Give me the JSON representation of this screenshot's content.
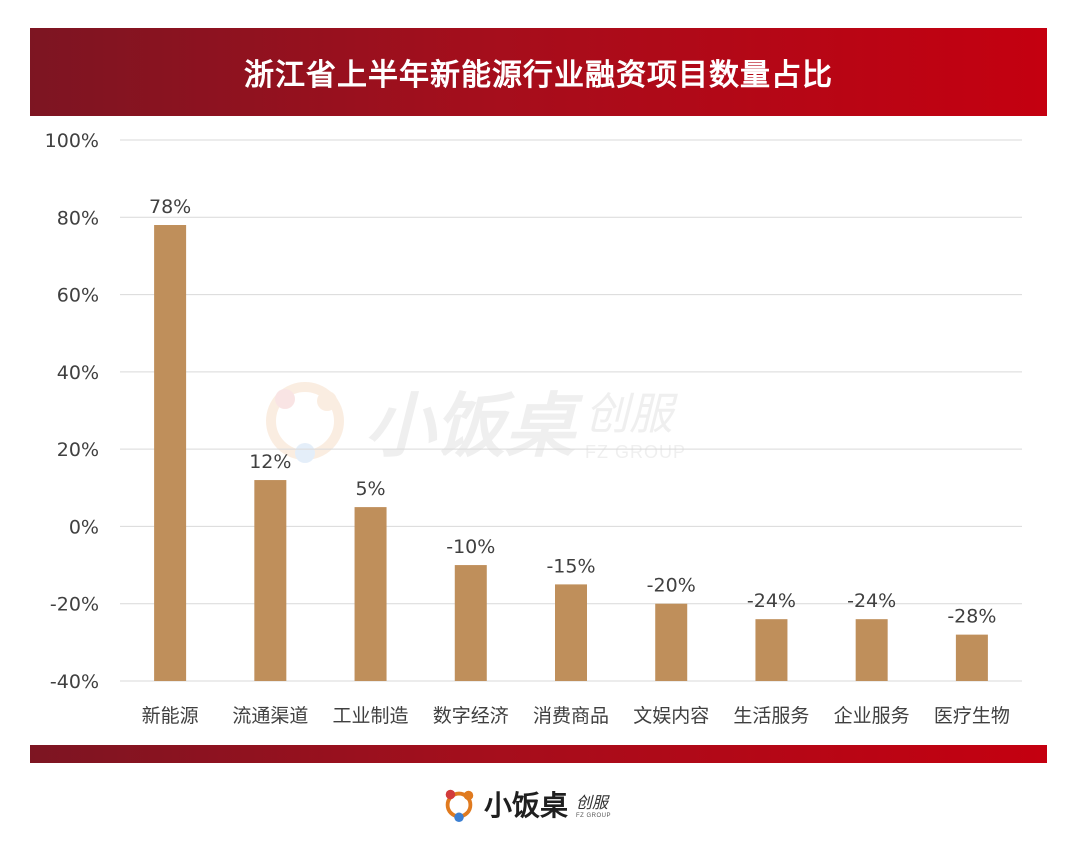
{
  "title": "浙江省上半年新能源行业融资项目数量占比",
  "brand": {
    "name": "小饭桌",
    "sub_cn": "创服",
    "sub_en": "FZ GROUP"
  },
  "colors": {
    "bar": "#bf8f5b",
    "banner_dark": "#7d1522",
    "banner_light": "#c40010",
    "grid": "#d9d9d9",
    "text": "#404040"
  },
  "chart_data": {
    "type": "bar",
    "title": "浙江省上半年新能源行业融资项目数量占比",
    "xlabel": "",
    "ylabel": "",
    "categories": [
      "新能源",
      "流通渠道",
      "工业制造",
      "数字经济",
      "消费商品",
      "文娱内容",
      "生活服务",
      "企业服务",
      "医疗生物"
    ],
    "values": [
      78,
      12,
      5,
      -10,
      -15,
      -20,
      -24,
      -24,
      -28
    ],
    "data_labels": [
      "78%",
      "12%",
      "5%",
      "-10%",
      "-15%",
      "-20%",
      "-24%",
      "-24%",
      "-28%"
    ],
    "ylim": [
      -40,
      100
    ],
    "yticks": [
      100,
      80,
      60,
      40,
      20,
      0,
      -20,
      -40
    ],
    "ytick_labels": [
      "100%",
      "80%",
      "60%",
      "40%",
      "20%",
      "0%",
      "-20%",
      "-40%"
    ],
    "grid": true,
    "legend": "none"
  }
}
